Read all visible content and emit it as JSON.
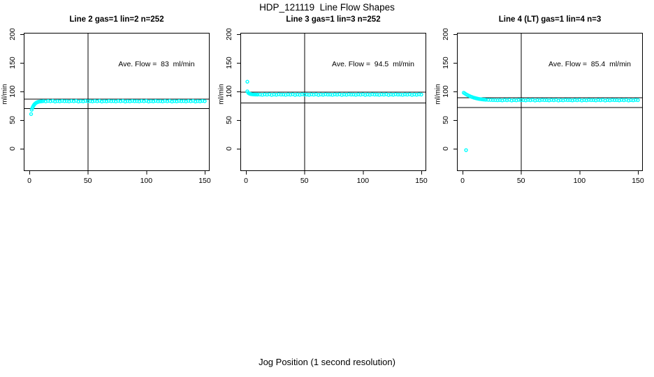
{
  "page": {
    "title": "HDP_121119  Line Flow Shapes",
    "xlabel": "Jog Position (1 second resolution)"
  },
  "chart_data": {
    "type": "scatter",
    "title": "HDP_121119  Line Flow Shapes",
    "xlabel": "Jog Position (1 second resolution)",
    "ylabel": "ml/min",
    "xlim": [
      -5,
      155
    ],
    "ylim": [
      -40,
      203
    ],
    "x_ticks": [
      0,
      50,
      100,
      150
    ],
    "y_ticks": [
      0,
      50,
      100,
      150,
      200
    ],
    "grid": false,
    "point_color": "#00FFFF",
    "line_color": "#000000",
    "panels": [
      {
        "title": "Line 2 gas=1 lin=2 n=252",
        "annotation": "Ave. Flow =  83  ml/min",
        "ave_flow": 83,
        "n": 252,
        "vline_x": 50,
        "hlines": [
          87.2,
          70.6
        ],
        "points": [
          [
            1.5,
            60.5
          ],
          [
            2,
            68
          ],
          [
            2.5,
            70.8
          ],
          [
            3,
            73
          ],
          [
            3.5,
            74.9
          ],
          [
            4,
            76.6
          ],
          [
            4.5,
            77.8
          ],
          [
            5,
            78.9
          ],
          [
            5.5,
            79.7
          ],
          [
            6,
            80.4
          ],
          [
            6.5,
            80.9
          ],
          [
            7,
            81.4
          ],
          [
            7.5,
            81.7
          ],
          [
            8,
            82
          ],
          [
            9,
            82.4
          ],
          [
            10,
            82.7
          ],
          [
            11,
            82.9
          ],
          [
            12,
            83.1
          ],
          [
            14,
            82.6
          ],
          [
            16,
            83.4
          ],
          [
            18,
            82.9
          ],
          [
            20,
            83.6
          ],
          [
            22,
            82.4
          ],
          [
            24,
            83.2
          ],
          [
            26,
            82.7
          ],
          [
            28,
            83.5
          ],
          [
            30,
            83
          ],
          [
            32,
            83.1
          ],
          [
            34,
            82.6
          ],
          [
            36,
            83.4
          ],
          [
            38,
            82.9
          ],
          [
            40,
            83.6
          ],
          [
            42,
            82.4
          ],
          [
            44,
            83.2
          ],
          [
            46,
            82.7
          ],
          [
            48,
            83.5
          ],
          [
            50,
            83
          ],
          [
            52,
            83.1
          ],
          [
            54,
            82.6
          ],
          [
            56,
            83.4
          ],
          [
            58,
            82.9
          ],
          [
            60,
            83.6
          ],
          [
            62,
            82.4
          ],
          [
            64,
            83.2
          ],
          [
            66,
            82.7
          ],
          [
            68,
            83.5
          ],
          [
            70,
            83
          ],
          [
            72,
            83.1
          ],
          [
            74,
            82.6
          ],
          [
            76,
            83.4
          ],
          [
            78,
            82.9
          ],
          [
            80,
            83.6
          ],
          [
            82,
            82.4
          ],
          [
            84,
            83.2
          ],
          [
            86,
            82.7
          ],
          [
            88,
            83.5
          ],
          [
            90,
            83
          ],
          [
            92,
            83.1
          ],
          [
            94,
            82.6
          ],
          [
            96,
            83.4
          ],
          [
            98,
            82.9
          ],
          [
            100,
            83.6
          ],
          [
            102,
            82.4
          ],
          [
            104,
            83.2
          ],
          [
            106,
            82.7
          ],
          [
            108,
            83.5
          ],
          [
            110,
            83
          ],
          [
            112,
            83.1
          ],
          [
            114,
            82.6
          ],
          [
            116,
            83.4
          ],
          [
            118,
            82.9
          ],
          [
            120,
            83.6
          ],
          [
            122,
            82.4
          ],
          [
            124,
            83.2
          ],
          [
            126,
            82.7
          ],
          [
            128,
            83.5
          ],
          [
            130,
            83
          ],
          [
            132,
            83.1
          ],
          [
            134,
            82.6
          ],
          [
            136,
            83.4
          ],
          [
            138,
            82.9
          ],
          [
            140,
            83.6
          ],
          [
            142,
            82.4
          ],
          [
            144,
            83.2
          ],
          [
            146,
            82.7
          ],
          [
            148,
            83.5
          ],
          [
            150,
            83
          ]
        ]
      },
      {
        "title": "Line 3 gas=1 lin=3 n=252",
        "annotation": "Ave. Flow =  94.5  ml/min",
        "ave_flow": 94.5,
        "n": 252,
        "vline_x": 50,
        "hlines": [
          99.2,
          80.3
        ],
        "points": [
          [
            1.2,
            117
          ],
          [
            1.2,
            100.2
          ],
          [
            2,
            97.6
          ],
          [
            2.5,
            96.8
          ],
          [
            3,
            96.3
          ],
          [
            3.5,
            95.8
          ],
          [
            4,
            95.5
          ],
          [
            4.5,
            95.3
          ],
          [
            5,
            95.1
          ],
          [
            6,
            94.9
          ],
          [
            7,
            94.7
          ],
          [
            8,
            94.6
          ],
          [
            9,
            94.6
          ],
          [
            10,
            94.5
          ],
          [
            12,
            94.6
          ],
          [
            14,
            94.1
          ],
          [
            16,
            94.9
          ],
          [
            18,
            94.4
          ],
          [
            20,
            95.1
          ],
          [
            22,
            93.9
          ],
          [
            24,
            94.7
          ],
          [
            26,
            94.2
          ],
          [
            28,
            95
          ],
          [
            30,
            94.5
          ],
          [
            32,
            94.6
          ],
          [
            34,
            94.1
          ],
          [
            36,
            94.9
          ],
          [
            38,
            94.4
          ],
          [
            40,
            95.1
          ],
          [
            42,
            93.9
          ],
          [
            44,
            94.7
          ],
          [
            46,
            94.2
          ],
          [
            48,
            95
          ],
          [
            50,
            94.5
          ],
          [
            52,
            94.6
          ],
          [
            54,
            94.1
          ],
          [
            56,
            94.9
          ],
          [
            58,
            94.4
          ],
          [
            60,
            95.1
          ],
          [
            62,
            93.9
          ],
          [
            64,
            94.7
          ],
          [
            66,
            94.2
          ],
          [
            68,
            95
          ],
          [
            70,
            94.5
          ],
          [
            72,
            94.6
          ],
          [
            74,
            94.1
          ],
          [
            76,
            94.9
          ],
          [
            78,
            94.4
          ],
          [
            80,
            95.1
          ],
          [
            82,
            93.9
          ],
          [
            84,
            94.7
          ],
          [
            86,
            94.2
          ],
          [
            88,
            95
          ],
          [
            90,
            94.5
          ],
          [
            92,
            94.6
          ],
          [
            94,
            94.1
          ],
          [
            96,
            94.9
          ],
          [
            98,
            94.4
          ],
          [
            100,
            95.1
          ],
          [
            102,
            93.9
          ],
          [
            104,
            94.7
          ],
          [
            106,
            94.2
          ],
          [
            108,
            95
          ],
          [
            110,
            94.5
          ],
          [
            112,
            94.6
          ],
          [
            114,
            94.1
          ],
          [
            116,
            94.9
          ],
          [
            118,
            94.4
          ],
          [
            120,
            95.1
          ],
          [
            122,
            93.9
          ],
          [
            124,
            94.7
          ],
          [
            126,
            94.2
          ],
          [
            128,
            95
          ],
          [
            130,
            94.5
          ],
          [
            132,
            94.6
          ],
          [
            134,
            94.1
          ],
          [
            136,
            94.9
          ],
          [
            138,
            94.4
          ],
          [
            140,
            95.1
          ],
          [
            142,
            93.9
          ],
          [
            144,
            94.7
          ],
          [
            146,
            94.2
          ],
          [
            148,
            95
          ],
          [
            150,
            94.5
          ]
        ]
      },
      {
        "title": "Line 4 (LT) gas=1 lin=4 n=3",
        "annotation": "Ave. Flow =  85.4  ml/min",
        "ave_flow": 85.4,
        "n": 3,
        "vline_x": 50,
        "hlines": [
          89.7,
          72.6
        ],
        "points": [
          [
            3,
            -2.5
          ],
          [
            1,
            97.8
          ],
          [
            2,
            96.4
          ],
          [
            3,
            95.1
          ],
          [
            4,
            94
          ],
          [
            5,
            92.9
          ],
          [
            6,
            92
          ],
          [
            7,
            91.1
          ],
          [
            8,
            90.3
          ],
          [
            9,
            89.6
          ],
          [
            10,
            88.9
          ],
          [
            11,
            88.4
          ],
          [
            12,
            87.9
          ],
          [
            13,
            87.4
          ],
          [
            14,
            87
          ],
          [
            15,
            86.7
          ],
          [
            16,
            86.4
          ],
          [
            17,
            86.1
          ],
          [
            18,
            85.9
          ],
          [
            19,
            85.7
          ],
          [
            20,
            85.5
          ],
          [
            22,
            85.3
          ],
          [
            24,
            85.1
          ],
          [
            26,
            84.9
          ],
          [
            28,
            84.8
          ],
          [
            30,
            84.7
          ],
          [
            32,
            84.9
          ],
          [
            34,
            84.4
          ],
          [
            36,
            85.2
          ],
          [
            38,
            84.7
          ],
          [
            40,
            85.4
          ],
          [
            42,
            84.2
          ],
          [
            44,
            85
          ],
          [
            46,
            84.5
          ],
          [
            48,
            85.3
          ],
          [
            50,
            84.8
          ],
          [
            52,
            84.9
          ],
          [
            54,
            84.4
          ],
          [
            56,
            85.2
          ],
          [
            58,
            84.7
          ],
          [
            60,
            85.4
          ],
          [
            62,
            84.2
          ],
          [
            64,
            85
          ],
          [
            66,
            84.5
          ],
          [
            68,
            85.3
          ],
          [
            70,
            84.8
          ],
          [
            72,
            84.9
          ],
          [
            74,
            84.4
          ],
          [
            76,
            85.2
          ],
          [
            78,
            84.7
          ],
          [
            80,
            85.4
          ],
          [
            82,
            84.2
          ],
          [
            84,
            85
          ],
          [
            86,
            84.5
          ],
          [
            88,
            85.3
          ],
          [
            90,
            84.8
          ],
          [
            92,
            84.9
          ],
          [
            94,
            84.4
          ],
          [
            96,
            85.2
          ],
          [
            98,
            84.7
          ],
          [
            100,
            85.4
          ],
          [
            102,
            84.2
          ],
          [
            104,
            85
          ],
          [
            106,
            84.5
          ],
          [
            108,
            85.3
          ],
          [
            110,
            84.8
          ],
          [
            112,
            84.9
          ],
          [
            114,
            84.4
          ],
          [
            116,
            85.2
          ],
          [
            118,
            84.7
          ],
          [
            120,
            85.4
          ],
          [
            122,
            84.2
          ],
          [
            124,
            85
          ],
          [
            126,
            84.5
          ],
          [
            128,
            85.3
          ],
          [
            130,
            84.8
          ],
          [
            132,
            84.9
          ],
          [
            134,
            84.4
          ],
          [
            136,
            85.2
          ],
          [
            138,
            84.7
          ],
          [
            140,
            85.4
          ],
          [
            142,
            84.2
          ],
          [
            144,
            85
          ],
          [
            146,
            84.5
          ],
          [
            148,
            85.3
          ],
          [
            150,
            84.8
          ]
        ]
      }
    ]
  }
}
